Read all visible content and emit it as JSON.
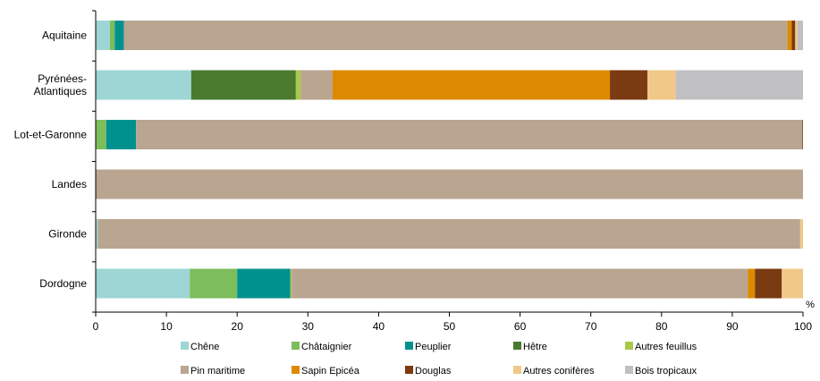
{
  "chart_data": {
    "type": "bar",
    "orientation": "horizontal",
    "stacked": true,
    "title": "",
    "xlabel": "",
    "ylabel": "",
    "unit": "%",
    "xlim": [
      0,
      100
    ],
    "xticks": [
      "0",
      "10",
      "20",
      "30",
      "40",
      "50",
      "60",
      "70",
      "80",
      "90",
      "100"
    ],
    "grid": false,
    "legend_position": "bottom",
    "categories": [
      "Aquitaine",
      "Pyrénées-\nAtlantiques",
      "Lot-et-Garonne",
      "Landes",
      "Gironde",
      "Dordogne"
    ],
    "series": [
      {
        "name": "Chêne",
        "color": "#9dd6d4",
        "values": [
          2.0,
          13.5,
          0.0,
          0.0,
          0.3,
          13.3
        ]
      },
      {
        "name": "Châtaignier",
        "color": "#7dbd5b",
        "values": [
          0.7,
          0.0,
          1.5,
          0.0,
          0.0,
          6.7
        ]
      },
      {
        "name": "Peuplier",
        "color": "#00918f",
        "values": [
          1.3,
          0.0,
          4.2,
          0.0,
          0.0,
          7.5
        ]
      },
      {
        "name": "Hêtre",
        "color": "#4a7a2e",
        "values": [
          0.0,
          14.8,
          0.0,
          0.0,
          0.0,
          0.0
        ]
      },
      {
        "name": "Autres feuillus",
        "color": "#a8c84a",
        "values": [
          0.0,
          0.7,
          0.0,
          0.0,
          0.0,
          0.2
        ]
      },
      {
        "name": "Pin maritime",
        "color": "#b9a590",
        "values": [
          93.8,
          4.5,
          94.2,
          100.0,
          99.3,
          64.5
        ]
      },
      {
        "name": "Sapin Epicéa",
        "color": "#de8a00",
        "values": [
          0.6,
          39.2,
          0.0,
          0.0,
          0.0,
          1.0
        ]
      },
      {
        "name": "Douglas",
        "color": "#7a3a12",
        "values": [
          0.5,
          5.3,
          0.1,
          0.0,
          0.0,
          3.8
        ]
      },
      {
        "name": "Autres conifères",
        "color": "#f0c888",
        "values": [
          0.3,
          4.0,
          0.0,
          0.0,
          0.4,
          3.0
        ]
      },
      {
        "name": "Bois tropicaux",
        "color": "#c0c0c2",
        "values": [
          0.8,
          18.0,
          0.0,
          0.0,
          0.0,
          0.0
        ]
      }
    ]
  }
}
